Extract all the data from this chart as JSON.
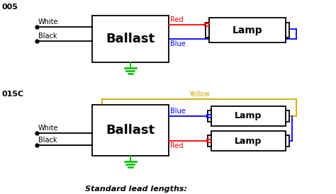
{
  "bg_color": "#ffffff",
  "line_color": "#000000",
  "red_color": "#ff0000",
  "blue_color": "#0000ff",
  "green_color": "#00bb00",
  "yellow_color": "#ccaa00",
  "title1": "005",
  "title2": "015C",
  "bottom_text": "Standard lead lengths:"
}
